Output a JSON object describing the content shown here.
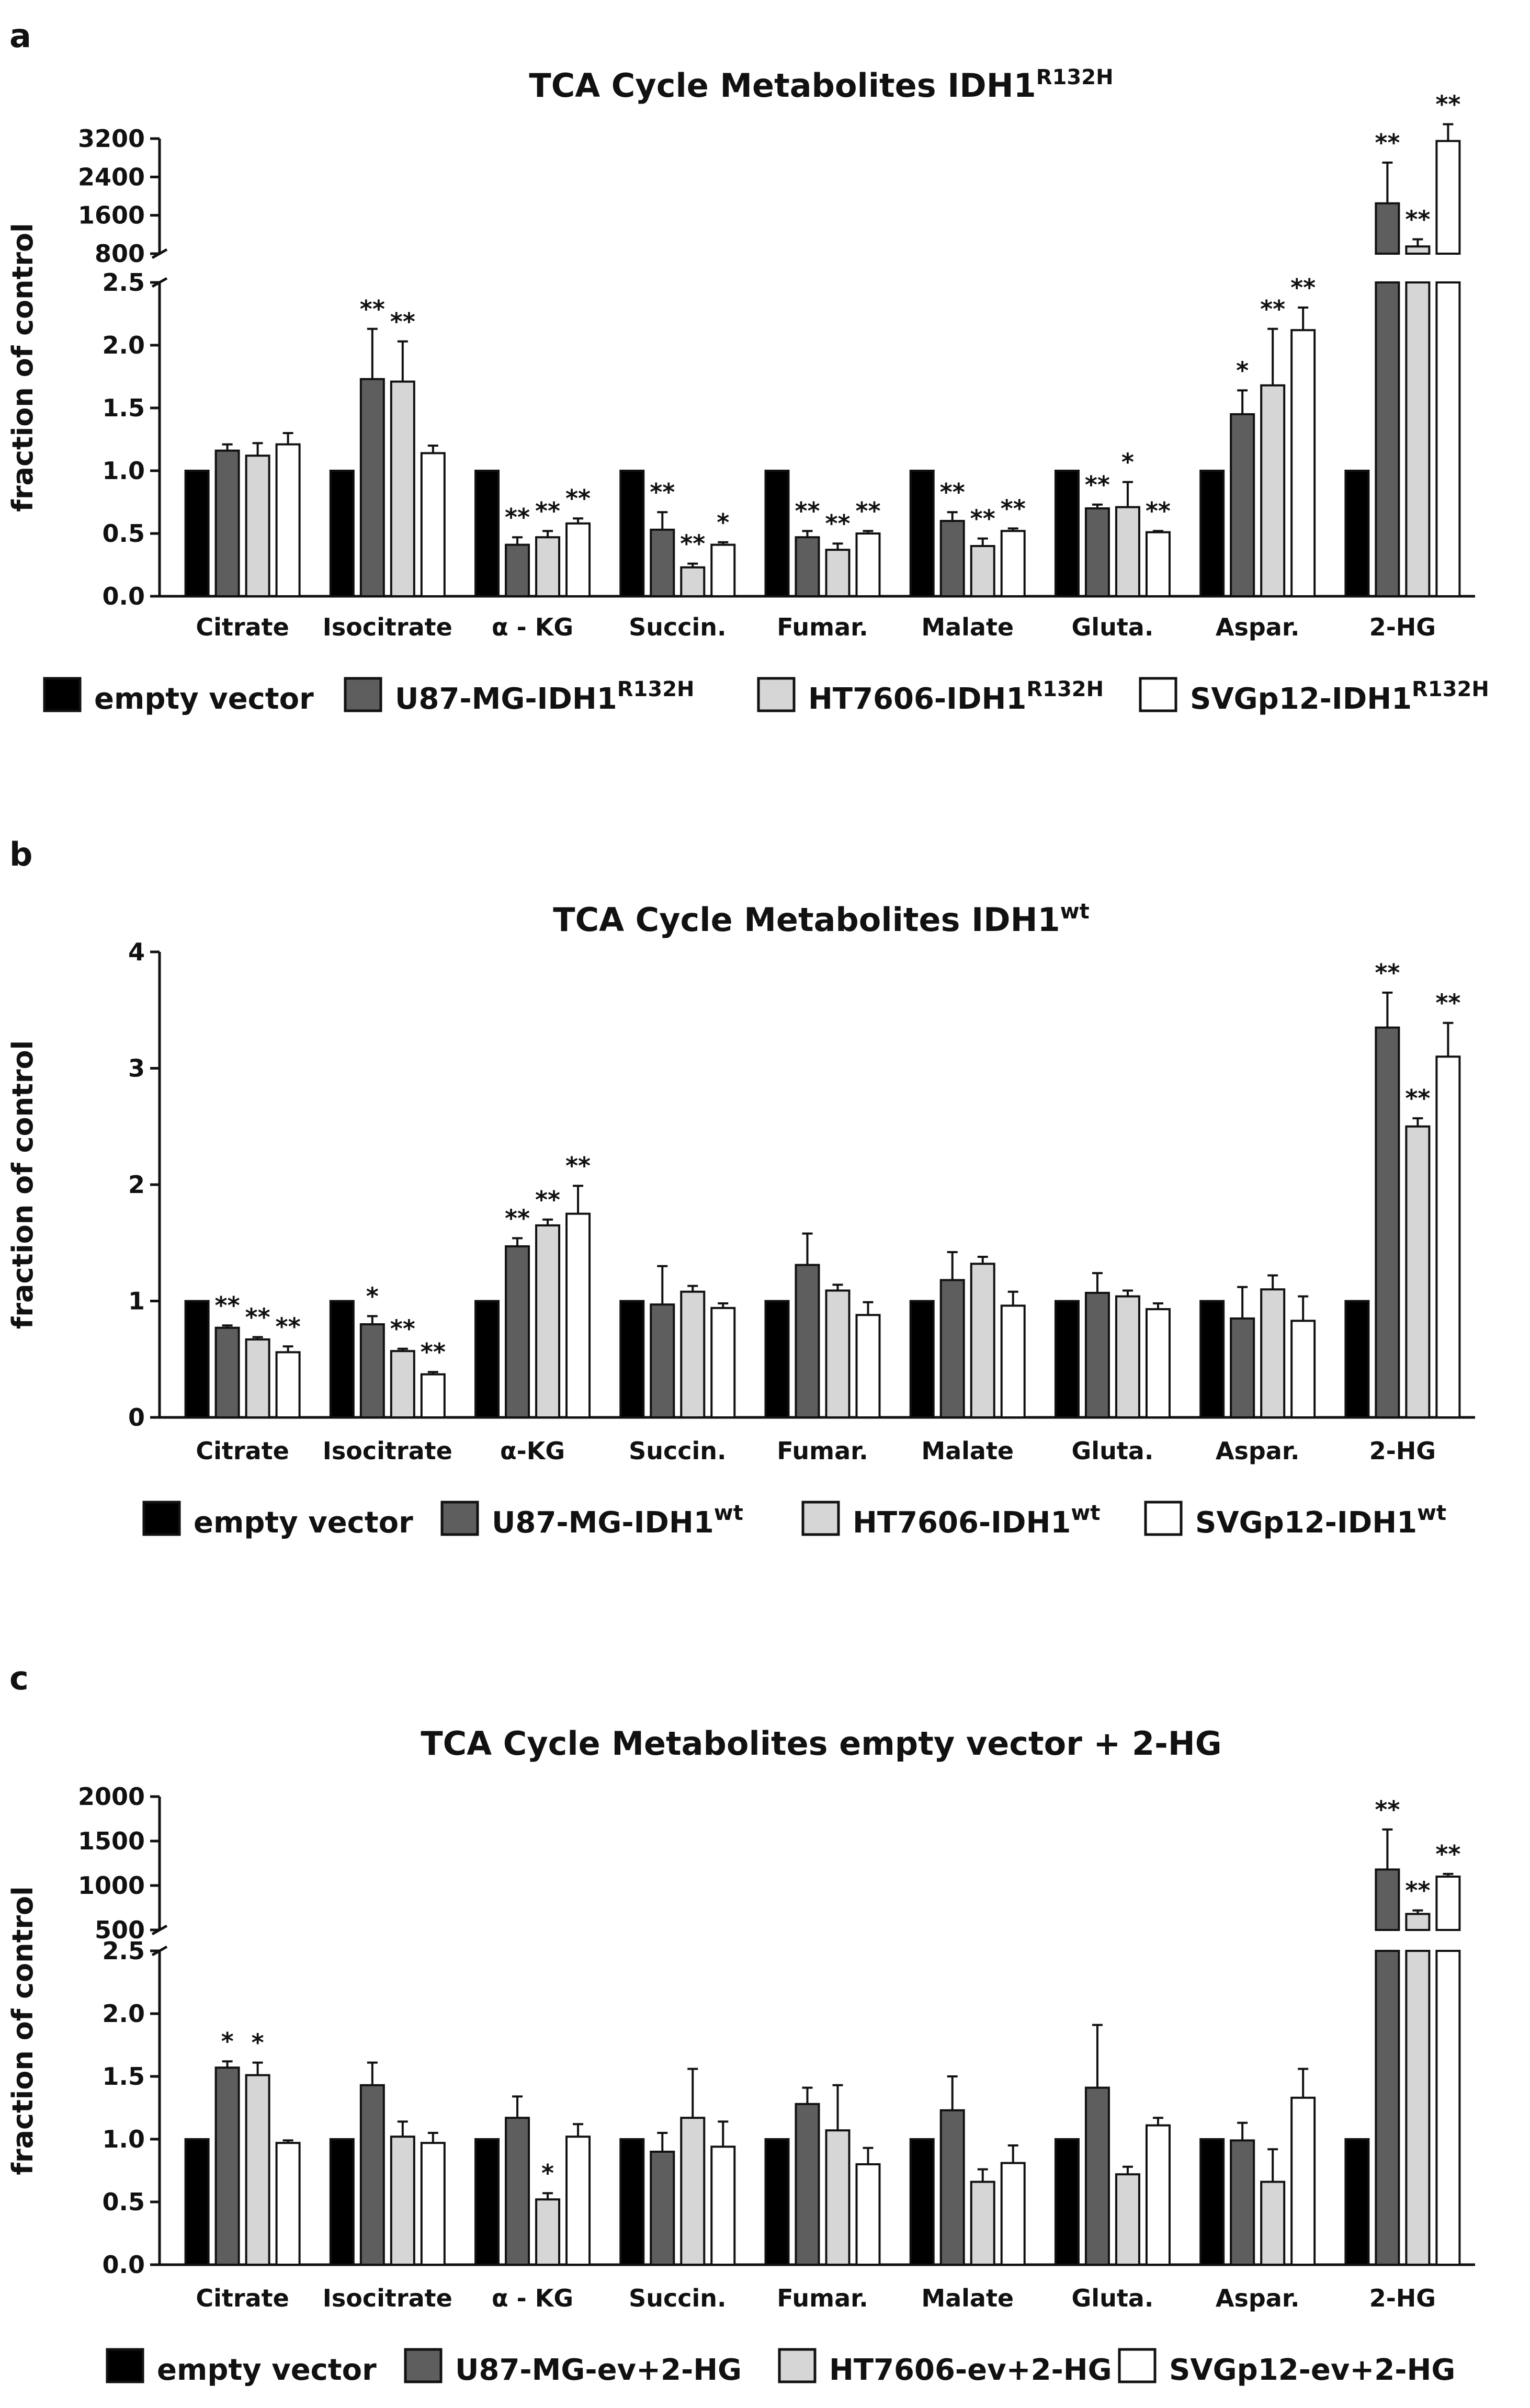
{
  "colors": {
    "empty_vector": "#000000",
    "u87": "#5e5e5e",
    "ht7606": "#d6d6d6",
    "svgp12": "#ffffff",
    "axis": "#111111"
  },
  "chart_data": [
    {
      "panel": "a",
      "type": "bar",
      "title": "TCA Cycle Metabolites IDH1",
      "title_sup": "R132H",
      "ylabel": "fraction of control",
      "categories": [
        "Citrate",
        "Isocitrate",
        "α - KG",
        "Succin.",
        "Fumar.",
        "Malate",
        "Gluta.",
        "Aspar.",
        "2-HG"
      ],
      "broken_axis": true,
      "lower_range": [
        0,
        2.5
      ],
      "lower_ticks": [
        "0.0",
        "0.5",
        "1.0",
        "1.5",
        "2.0",
        "2.5"
      ],
      "upper_range": [
        800,
        3200
      ],
      "upper_ticks": [
        "800",
        "1600",
        "2400",
        "3200"
      ],
      "series": [
        {
          "name": "empty vector",
          "name_sup": "",
          "values": [
            1,
            1,
            1,
            1,
            1,
            1,
            1,
            1,
            1
          ],
          "errors": [
            0,
            0,
            0,
            0,
            0,
            0,
            0,
            0,
            0
          ],
          "sig": [
            "",
            "",
            "",
            "",
            "",
            "",
            "",
            "",
            ""
          ]
        },
        {
          "name": "U87-MG-IDH1",
          "name_sup": "R132H",
          "values": [
            1.16,
            1.73,
            0.41,
            0.53,
            0.47,
            0.6,
            0.7,
            1.45,
            1850
          ],
          "errors": [
            0.05,
            0.4,
            0.06,
            0.14,
            0.05,
            0.07,
            0.03,
            0.19,
            850
          ],
          "sig": [
            "",
            "**",
            "**",
            "**",
            "**",
            "**",
            "**",
            "*",
            "**"
          ]
        },
        {
          "name": "HT7606-IDH1",
          "name_sup": "R132H",
          "values": [
            1.12,
            1.71,
            0.47,
            0.23,
            0.37,
            0.4,
            0.71,
            1.68,
            950
          ],
          "errors": [
            0.1,
            0.32,
            0.05,
            0.03,
            0.05,
            0.06,
            0.2,
            0.45,
            150
          ],
          "sig": [
            "",
            "**",
            "**",
            "**",
            "**",
            "**",
            "*",
            "**",
            "**"
          ]
        },
        {
          "name": "SVGp12-IDH1",
          "name_sup": "R132H",
          "values": [
            1.21,
            1.14,
            0.58,
            0.41,
            0.5,
            0.52,
            0.51,
            2.12,
            3150
          ],
          "errors": [
            0.09,
            0.06,
            0.04,
            0.02,
            0.02,
            0.02,
            0.01,
            0.18,
            350
          ],
          "sig": [
            "",
            "",
            "**",
            "*",
            "**",
            "**",
            "**",
            "**",
            "**"
          ]
        }
      ]
    },
    {
      "panel": "b",
      "type": "bar",
      "title": "TCA Cycle Metabolites IDH1",
      "title_sup": "wt",
      "ylabel": "fraction of control",
      "categories": [
        "Citrate",
        "Isocitrate",
        "α-KG",
        "Succin.",
        "Fumar.",
        "Malate",
        "Gluta.",
        "Aspar.",
        "2-HG"
      ],
      "broken_axis": false,
      "lower_range": [
        0,
        4
      ],
      "lower_ticks": [
        "0",
        "1",
        "2",
        "3",
        "4"
      ],
      "series": [
        {
          "name": "empty vector",
          "name_sup": "",
          "values": [
            1,
            1,
            1,
            1,
            1,
            1,
            1,
            1,
            1
          ],
          "errors": [
            0,
            0,
            0,
            0,
            0,
            0,
            0,
            0,
            0
          ],
          "sig": [
            "",
            "",
            "",
            "",
            "",
            "",
            "",
            "",
            ""
          ]
        },
        {
          "name": "U87-MG-IDH1",
          "name_sup": "wt",
          "values": [
            0.77,
            0.8,
            1.47,
            0.97,
            1.31,
            1.18,
            1.07,
            0.85,
            3.35
          ],
          "errors": [
            0.02,
            0.07,
            0.07,
            0.33,
            0.27,
            0.24,
            0.17,
            0.27,
            0.3
          ],
          "sig": [
            "**",
            "*",
            "**",
            "",
            "",
            "",
            "",
            "",
            "**"
          ]
        },
        {
          "name": "HT7606-IDH1",
          "name_sup": "wt",
          "values": [
            0.67,
            0.57,
            1.65,
            1.08,
            1.09,
            1.32,
            1.04,
            1.1,
            2.5
          ],
          "errors": [
            0.02,
            0.02,
            0.05,
            0.05,
            0.05,
            0.06,
            0.05,
            0.12,
            0.07
          ],
          "sig": [
            "**",
            "**",
            "**",
            "",
            "",
            "",
            "",
            "",
            "**"
          ]
        },
        {
          "name": "SVGp12-IDH1",
          "name_sup": "wt",
          "values": [
            0.56,
            0.37,
            1.75,
            0.94,
            0.88,
            0.96,
            0.93,
            0.83,
            3.1
          ],
          "errors": [
            0.05,
            0.02,
            0.24,
            0.04,
            0.11,
            0.12,
            0.05,
            0.21,
            0.29
          ],
          "sig": [
            "**",
            "**",
            "**",
            "",
            "",
            "",
            "",
            "",
            "**"
          ]
        }
      ]
    },
    {
      "panel": "c",
      "type": "bar",
      "title": "TCA Cycle Metabolites empty vector + 2-HG",
      "title_sup": "",
      "ylabel": "fraction of control",
      "categories": [
        "Citrate",
        "Isocitrate",
        "α - KG",
        "Succin.",
        "Fumar.",
        "Malate",
        "Gluta.",
        "Aspar.",
        "2-HG"
      ],
      "broken_axis": true,
      "lower_range": [
        0,
        2.5
      ],
      "lower_ticks": [
        "0.0",
        "0.5",
        "1.0",
        "1.5",
        "2.0",
        "2.5"
      ],
      "upper_range": [
        500,
        2000
      ],
      "upper_ticks": [
        "500",
        "1000",
        "1500",
        "2000"
      ],
      "series": [
        {
          "name": "empty vector",
          "name_sup": "",
          "values": [
            1,
            1,
            1,
            1,
            1,
            1,
            1,
            1,
            1
          ],
          "errors": [
            0,
            0,
            0,
            0,
            0,
            0,
            0,
            0,
            0
          ],
          "sig": [
            "",
            "",
            "",
            "",
            "",
            "",
            "",
            "",
            ""
          ]
        },
        {
          "name": "U87-MG-ev+2-HG",
          "name_sup": "",
          "values": [
            1.57,
            1.43,
            1.17,
            0.9,
            1.28,
            1.23,
            1.41,
            0.99,
            1180
          ],
          "errors": [
            0.05,
            0.18,
            0.17,
            0.15,
            0.13,
            0.27,
            0.5,
            0.14,
            450
          ],
          "sig": [
            "*",
            "",
            "",
            "",
            "",
            "",
            "",
            "",
            "**"
          ]
        },
        {
          "name": "HT7606-ev+2-HG",
          "name_sup": "",
          "values": [
            1.51,
            1.02,
            0.52,
            1.17,
            1.07,
            0.66,
            0.72,
            0.66,
            680
          ],
          "errors": [
            0.1,
            0.12,
            0.05,
            0.39,
            0.36,
            0.1,
            0.06,
            0.26,
            40
          ],
          "sig": [
            "*",
            "",
            "*",
            "",
            "",
            "",
            "",
            "",
            "**"
          ]
        },
        {
          "name": "SVGp12-ev+2-HG",
          "name_sup": "",
          "values": [
            0.97,
            0.97,
            1.02,
            0.94,
            0.8,
            0.81,
            1.11,
            1.33,
            1100
          ],
          "errors": [
            0.02,
            0.08,
            0.1,
            0.2,
            0.13,
            0.14,
            0.06,
            0.23,
            30
          ],
          "sig": [
            "",
            "",
            "",
            "",
            "",
            "",
            "",
            "",
            "**"
          ]
        }
      ]
    }
  ]
}
